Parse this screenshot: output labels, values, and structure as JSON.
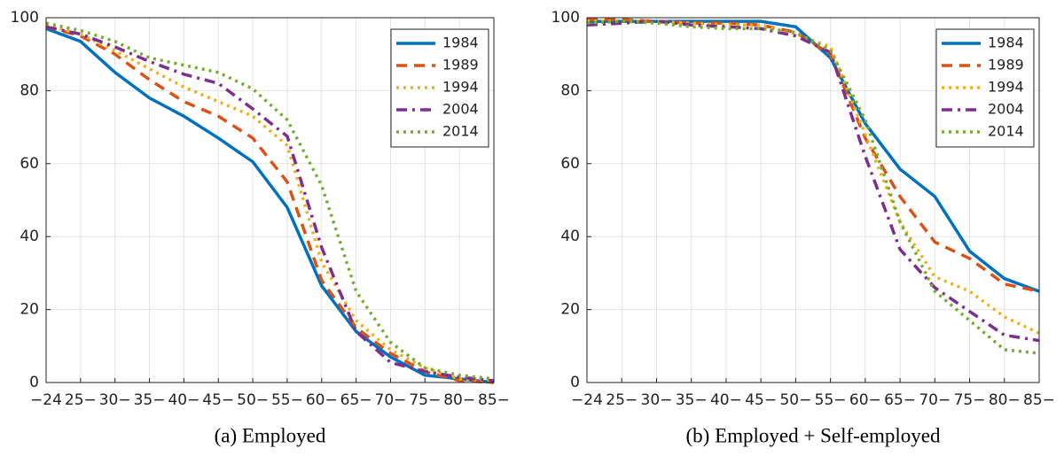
{
  "chart_data": [
    {
      "type": "line",
      "title": "(a) Employed",
      "categories": [
        "−24",
        "25−",
        "30−",
        "35−",
        "40−",
        "45−",
        "50−",
        "55−",
        "60−",
        "65−",
        "70−",
        "75−",
        "80−",
        "85−"
      ],
      "ylim": [
        0,
        100
      ],
      "yticks": [
        0,
        20,
        40,
        60,
        80,
        100
      ],
      "grid": true,
      "legend": "upper right",
      "series": [
        {
          "name": "1984",
          "color": "#0072BD",
          "dash": "solid",
          "values": [
            97,
            93.5,
            85,
            78,
            73,
            67,
            60.5,
            48,
            26.5,
            14,
            7,
            2,
            1,
            0
          ]
        },
        {
          "name": "1989",
          "color": "#D95319",
          "dash": "dashed",
          "values": [
            97.5,
            95,
            90,
            83,
            77,
            73,
            67,
            55,
            28,
            15,
            8,
            3,
            0.5,
            0
          ]
        },
        {
          "name": "1994",
          "color": "#EDB120",
          "dash": "dotted",
          "values": [
            98,
            95.5,
            91,
            86,
            81,
            77,
            73,
            65,
            33,
            17,
            9,
            4,
            1,
            0.5
          ]
        },
        {
          "name": "2004",
          "color": "#7E2F8E",
          "dash": "dashdot",
          "values": [
            97.5,
            95.5,
            92,
            88,
            84.5,
            82,
            75,
            67.5,
            37,
            14,
            5.5,
            3,
            1.5,
            0.5
          ]
        },
        {
          "name": "2014",
          "color": "#77AC30",
          "dash": "dotted",
          "values": [
            98.5,
            96.5,
            93.5,
            89,
            87,
            85,
            80.5,
            72,
            54,
            25,
            11,
            4,
            2,
            1
          ]
        }
      ]
    },
    {
      "type": "line",
      "title": "(b) Employed + Self-employed",
      "categories": [
        "−24",
        "25−",
        "30−",
        "35−",
        "40−",
        "45−",
        "50−",
        "55−",
        "60−",
        "65−",
        "70−",
        "75−",
        "80−",
        "85−"
      ],
      "ylim": [
        0,
        100
      ],
      "yticks": [
        0,
        20,
        40,
        60,
        80,
        100
      ],
      "grid": true,
      "legend": "upper right",
      "series": [
        {
          "name": "1984",
          "color": "#0072BD",
          "dash": "solid",
          "values": [
            99,
            99,
            99,
            99,
            99,
            99,
            97.5,
            89,
            71,
            58.5,
            51,
            36,
            28.5,
            25
          ]
        },
        {
          "name": "1989",
          "color": "#D95319",
          "dash": "dashed",
          "values": [
            99.5,
            99.5,
            99,
            98.5,
            98.5,
            98,
            96,
            90,
            67,
            51,
            38.5,
            34,
            27,
            25
          ]
        },
        {
          "name": "1994",
          "color": "#EDB120",
          "dash": "dotted",
          "values": [
            99,
            99,
            99,
            98.5,
            98,
            98,
            95.5,
            92,
            68,
            44,
            29,
            25,
            18,
            13.5
          ]
        },
        {
          "name": "2004",
          "color": "#7E2F8E",
          "dash": "dashdot",
          "values": [
            98,
            98.5,
            99,
            98,
            97.5,
            97,
            95,
            90.5,
            62,
            36.5,
            26,
            19.5,
            13,
            11.5
          ]
        },
        {
          "name": "2014",
          "color": "#77AC30",
          "dash": "dotted",
          "values": [
            98.5,
            99,
            98.5,
            97.5,
            97,
            97,
            96,
            91,
            72,
            44,
            25,
            17,
            9,
            8
          ]
        }
      ]
    }
  ]
}
